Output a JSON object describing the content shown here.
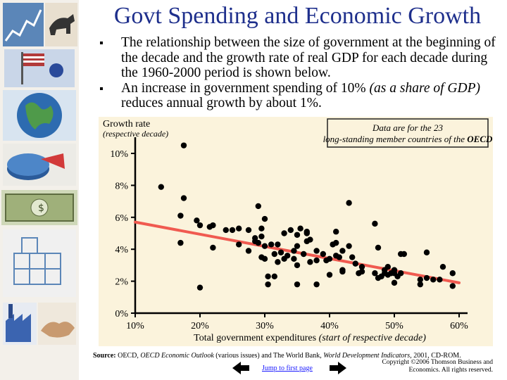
{
  "title": "Govt Spending and Economic Growth",
  "bullets": [
    {
      "text": "The relationship between the size of government at the beginning of the decade and the growth rate of real GDP for each decade during the 1960-2000 period is shown below."
    },
    {
      "text_before": "An increase in government spending of 10% ",
      "text_italic": "(as a share of GDP)",
      "text_after": " reduces annual growth by about 1%."
    }
  ],
  "chart_data": {
    "type": "scatter",
    "ylabel": "Growth rate",
    "ylabel_sub": "(respective decade)",
    "xlabel": "Total government expenditures",
    "xlabel_sub": "(start of respective decade)",
    "yticks": [
      "0%",
      "2%",
      "4%",
      "6%",
      "8%",
      "10%"
    ],
    "xticks": [
      "10%",
      "20%",
      "30%",
      "40%",
      "50%",
      "60%"
    ],
    "xlim": [
      10,
      60
    ],
    "ylim": [
      0,
      11
    ],
    "annotation": "Data are for the 23 long-standing member countries of the",
    "annotation_bold": "OECD",
    "trend_line": {
      "x": [
        10,
        60
      ],
      "y": [
        5.7,
        1.9
      ]
    },
    "points": [
      [
        17.5,
        10.5
      ],
      [
        14,
        7.9
      ],
      [
        17.5,
        7.2
      ],
      [
        19.5,
        5.8
      ],
      [
        17,
        6.1
      ],
      [
        17,
        4.4
      ],
      [
        20,
        5.5
      ],
      [
        21.5,
        5.4
      ],
      [
        22,
        5.5
      ],
      [
        20,
        1.6
      ],
      [
        22,
        4.1
      ],
      [
        24,
        5.2
      ],
      [
        26,
        5.3
      ],
      [
        26,
        4.3
      ],
      [
        25,
        5.2
      ],
      [
        27.5,
        5.2
      ],
      [
        27.5,
        3.9
      ],
      [
        28.5,
        4.5
      ],
      [
        28.5,
        4.7
      ],
      [
        29,
        6.7
      ],
      [
        29,
        4.4
      ],
      [
        29.5,
        5.3
      ],
      [
        29.5,
        4.8
      ],
      [
        30,
        5.9
      ],
      [
        30,
        4.2
      ],
      [
        29.5,
        3.5
      ],
      [
        30,
        3.4
      ],
      [
        30.5,
        2.3
      ],
      [
        30.5,
        1.8
      ],
      [
        31,
        4.3
      ],
      [
        31.5,
        3.7
      ],
      [
        31.5,
        2.3
      ],
      [
        32,
        4.3
      ],
      [
        32,
        3.2
      ],
      [
        32.5,
        3.8
      ],
      [
        33,
        5.0
      ],
      [
        33,
        3.4
      ],
      [
        33.5,
        3.6
      ],
      [
        34,
        5.2
      ],
      [
        34.5,
        3.9
      ],
      [
        34.5,
        3.4
      ],
      [
        35,
        4.9
      ],
      [
        35,
        4.2
      ],
      [
        35,
        3.0
      ],
      [
        35,
        1.8
      ],
      [
        35.5,
        5.3
      ],
      [
        36,
        3.7
      ],
      [
        36.5,
        5.0
      ],
      [
        36.5,
        5.1
      ],
      [
        36.5,
        4.5
      ],
      [
        37,
        4.6
      ],
      [
        37,
        3.2
      ],
      [
        38,
        3.9
      ],
      [
        38,
        3.3
      ],
      [
        38,
        1.8
      ],
      [
        39,
        3.7
      ],
      [
        39.5,
        3.3
      ],
      [
        40,
        3.4
      ],
      [
        40,
        2.4
      ],
      [
        40.5,
        4.3
      ],
      [
        41,
        4.4
      ],
      [
        41,
        5.1
      ],
      [
        41,
        3.6
      ],
      [
        41.5,
        3.5
      ],
      [
        42,
        3.9
      ],
      [
        42,
        2.7
      ],
      [
        42,
        2.6
      ],
      [
        43,
        6.9
      ],
      [
        43,
        4.2
      ],
      [
        43.5,
        3.5
      ],
      [
        44,
        3.1
      ],
      [
        44.5,
        2.5
      ],
      [
        45,
        2.6
      ],
      [
        45,
        2.9
      ],
      [
        47,
        5.6
      ],
      [
        47,
        2.5
      ],
      [
        47.5,
        4.1
      ],
      [
        47.5,
        2.2
      ],
      [
        48,
        2.3
      ],
      [
        48.5,
        2.7
      ],
      [
        48.5,
        2.5
      ],
      [
        49,
        2.9
      ],
      [
        49,
        2.4
      ],
      [
        49.5,
        2.5
      ],
      [
        50,
        2.7
      ],
      [
        50,
        2.5
      ],
      [
        50,
        1.9
      ],
      [
        50.5,
        2.3
      ],
      [
        51,
        2.5
      ],
      [
        51,
        3.7
      ],
      [
        51.5,
        3.7
      ],
      [
        54,
        2.1
      ],
      [
        54,
        1.8
      ],
      [
        55,
        2.2
      ],
      [
        55,
        3.8
      ],
      [
        56,
        2.1
      ],
      [
        57,
        2.1
      ],
      [
        57.5,
        2.9
      ],
      [
        59,
        2.5
      ],
      [
        59,
        1.7
      ]
    ]
  },
  "source": {
    "label": "Source:",
    "pre1": "OECD, ",
    "italic1": "OECD Economic Outlook",
    "mid": " (various issues) and The World Bank, ",
    "italic2": "World Development Indicators",
    "post": ", 2001, CD-ROM."
  },
  "jump_link": "Jump to first page",
  "copyright": [
    "Copyright ©2006 Thomson Business and",
    "Economics. All rights reserved."
  ],
  "colors": {
    "title": "#1e2f8c",
    "plot_bg": "#fbf3dc",
    "trend": "#f05a50",
    "annotation_border": "#222222"
  },
  "icons": [
    "stock-chart-icon",
    "bull-icon",
    "flag-icon",
    "globe-icon",
    "piggy-bank-icon",
    "pie-chart-icon",
    "dollar-bill-icon",
    "building-blocks-icon",
    "factory-icon",
    "handshake-icon",
    "arrow-left-icon",
    "arrow-right-icon"
  ]
}
